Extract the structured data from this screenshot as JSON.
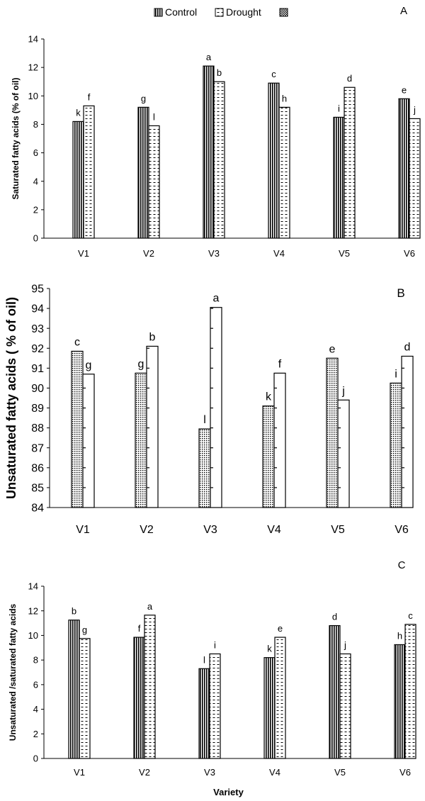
{
  "legend": {
    "entries": [
      "Control",
      "Drought",
      ""
    ]
  },
  "chart_data": [
    {
      "type": "bar",
      "panel_label": "A",
      "categories": [
        "V1",
        "V2",
        "V3",
        "V4",
        "V5",
        "V6"
      ],
      "series": [
        {
          "name": "Control",
          "values": [
            8.2,
            9.2,
            12.1,
            10.9,
            8.5,
            9.8
          ],
          "letters": [
            "k",
            "g",
            "a",
            "c",
            "i",
            "e"
          ],
          "pattern": "vertical-lines"
        },
        {
          "name": "Drought",
          "values": [
            9.3,
            7.9,
            11.0,
            9.2,
            10.6,
            8.4
          ],
          "letters": [
            "f",
            "l",
            "b",
            "h",
            "d",
            "j"
          ],
          "pattern": "dashes"
        }
      ],
      "title": "",
      "xlabel": "",
      "ylabel": "Saturated fatty acids (% of oil)",
      "ylim": [
        0,
        14
      ],
      "yticks": [
        0,
        2,
        4,
        6,
        8,
        10,
        12,
        14
      ],
      "grid": false,
      "legend_position": "top"
    },
    {
      "type": "bar",
      "panel_label": "B",
      "categories": [
        "V1",
        "V2",
        "V3",
        "V4",
        "V5",
        "V6"
      ],
      "series": [
        {
          "name": "Control",
          "values": [
            91.85,
            90.75,
            87.95,
            89.1,
            91.5,
            90.25
          ],
          "letters": [
            "c",
            "g",
            "l",
            "k",
            "e",
            "i"
          ],
          "pattern": "dots"
        },
        {
          "name": "Drought",
          "values": [
            90.7,
            92.1,
            94.05,
            90.75,
            89.4,
            91.6
          ],
          "letters": [
            "g",
            "b",
            "a",
            "f",
            "j",
            "d"
          ],
          "pattern": "ticks"
        }
      ],
      "title": "",
      "xlabel": "",
      "ylabel": "Unsaturated fatty acids ( % of oil)",
      "ylim": [
        84,
        95
      ],
      "yticks": [
        84,
        85,
        86,
        87,
        88,
        89,
        90,
        91,
        92,
        93,
        94,
        95
      ],
      "grid": false
    },
    {
      "type": "bar",
      "panel_label": "C",
      "categories": [
        "V1",
        "V2",
        "V3",
        "V4",
        "V5",
        "V6"
      ],
      "series": [
        {
          "name": "Control",
          "values": [
            11.25,
            9.85,
            7.3,
            8.2,
            10.8,
            9.25
          ],
          "letters": [
            "b",
            "f",
            "l",
            "k",
            "d",
            "h"
          ],
          "pattern": "vertical-lines"
        },
        {
          "name": "Drought",
          "values": [
            9.75,
            11.65,
            8.5,
            9.85,
            8.5,
            10.9
          ],
          "letters": [
            "g",
            "a",
            "i",
            "e",
            "j",
            "c"
          ],
          "pattern": "dashes"
        }
      ],
      "title": "",
      "xlabel": "Variety",
      "ylabel": "Unsaturated /saturated fatty acids",
      "ylim": [
        0,
        14
      ],
      "yticks": [
        0,
        2,
        4,
        6,
        8,
        10,
        12,
        14
      ],
      "grid": false
    }
  ]
}
